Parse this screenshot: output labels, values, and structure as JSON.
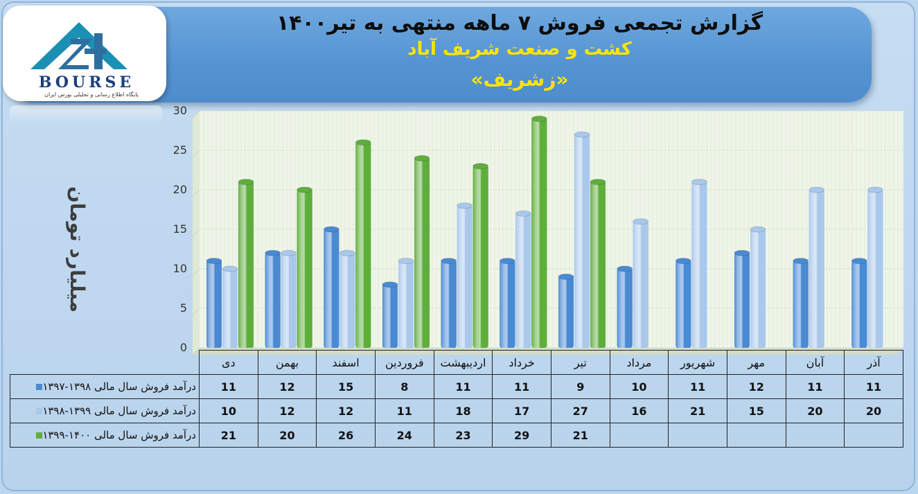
{
  "header": {
    "title": "گزارش تجمعی فروش ۷ ماهه منتهی به تیر۱۴۰۰",
    "company": "کشت و صنعت شریف آباد",
    "symbol": "«زشریف»"
  },
  "logo": {
    "wordmark": "BOURSE",
    "tagline": "پایگاه اطلاع رسانی و تحلیلی بورس ایران"
  },
  "colors": {
    "series1": "#4a8ad4",
    "series2": "#a9c8ec",
    "series3": "#5fae3c",
    "plot_bg": "#eff5e8",
    "grid": "#c9d6c0"
  },
  "chart_data": {
    "type": "bar",
    "ylabel": "میلیارد تومان",
    "ylim": [
      0,
      30
    ],
    "yticks": [
      0,
      5,
      10,
      15,
      20,
      25,
      30
    ],
    "grid": true,
    "legend": "data-table-left",
    "categories": [
      "دی",
      "بهمن",
      "اسفند",
      "فروردین",
      "اردیبهشت",
      "خرداد",
      "تیر",
      "مرداد",
      "شهریور",
      "مهر",
      "آبان",
      "آذر"
    ],
    "series": [
      {
        "name": "درآمد فروش سال مالی ۱۳۹۸-۱۳۹۷",
        "values": [
          11,
          12,
          15,
          8,
          11,
          11,
          9,
          10,
          11,
          12,
          11,
          11
        ]
      },
      {
        "name": "درآمد فروش سال مالی ۱۳۹۹-۱۳۹۸",
        "values": [
          10,
          12,
          12,
          11,
          18,
          17,
          27,
          16,
          21,
          15,
          20,
          20
        ]
      },
      {
        "name": "درآمد فروش سال مالی ۱۴۰۰-۱۳۹۹",
        "values": [
          21,
          20,
          26,
          24,
          23,
          29,
          21,
          null,
          null,
          null,
          null,
          null
        ]
      }
    ]
  }
}
